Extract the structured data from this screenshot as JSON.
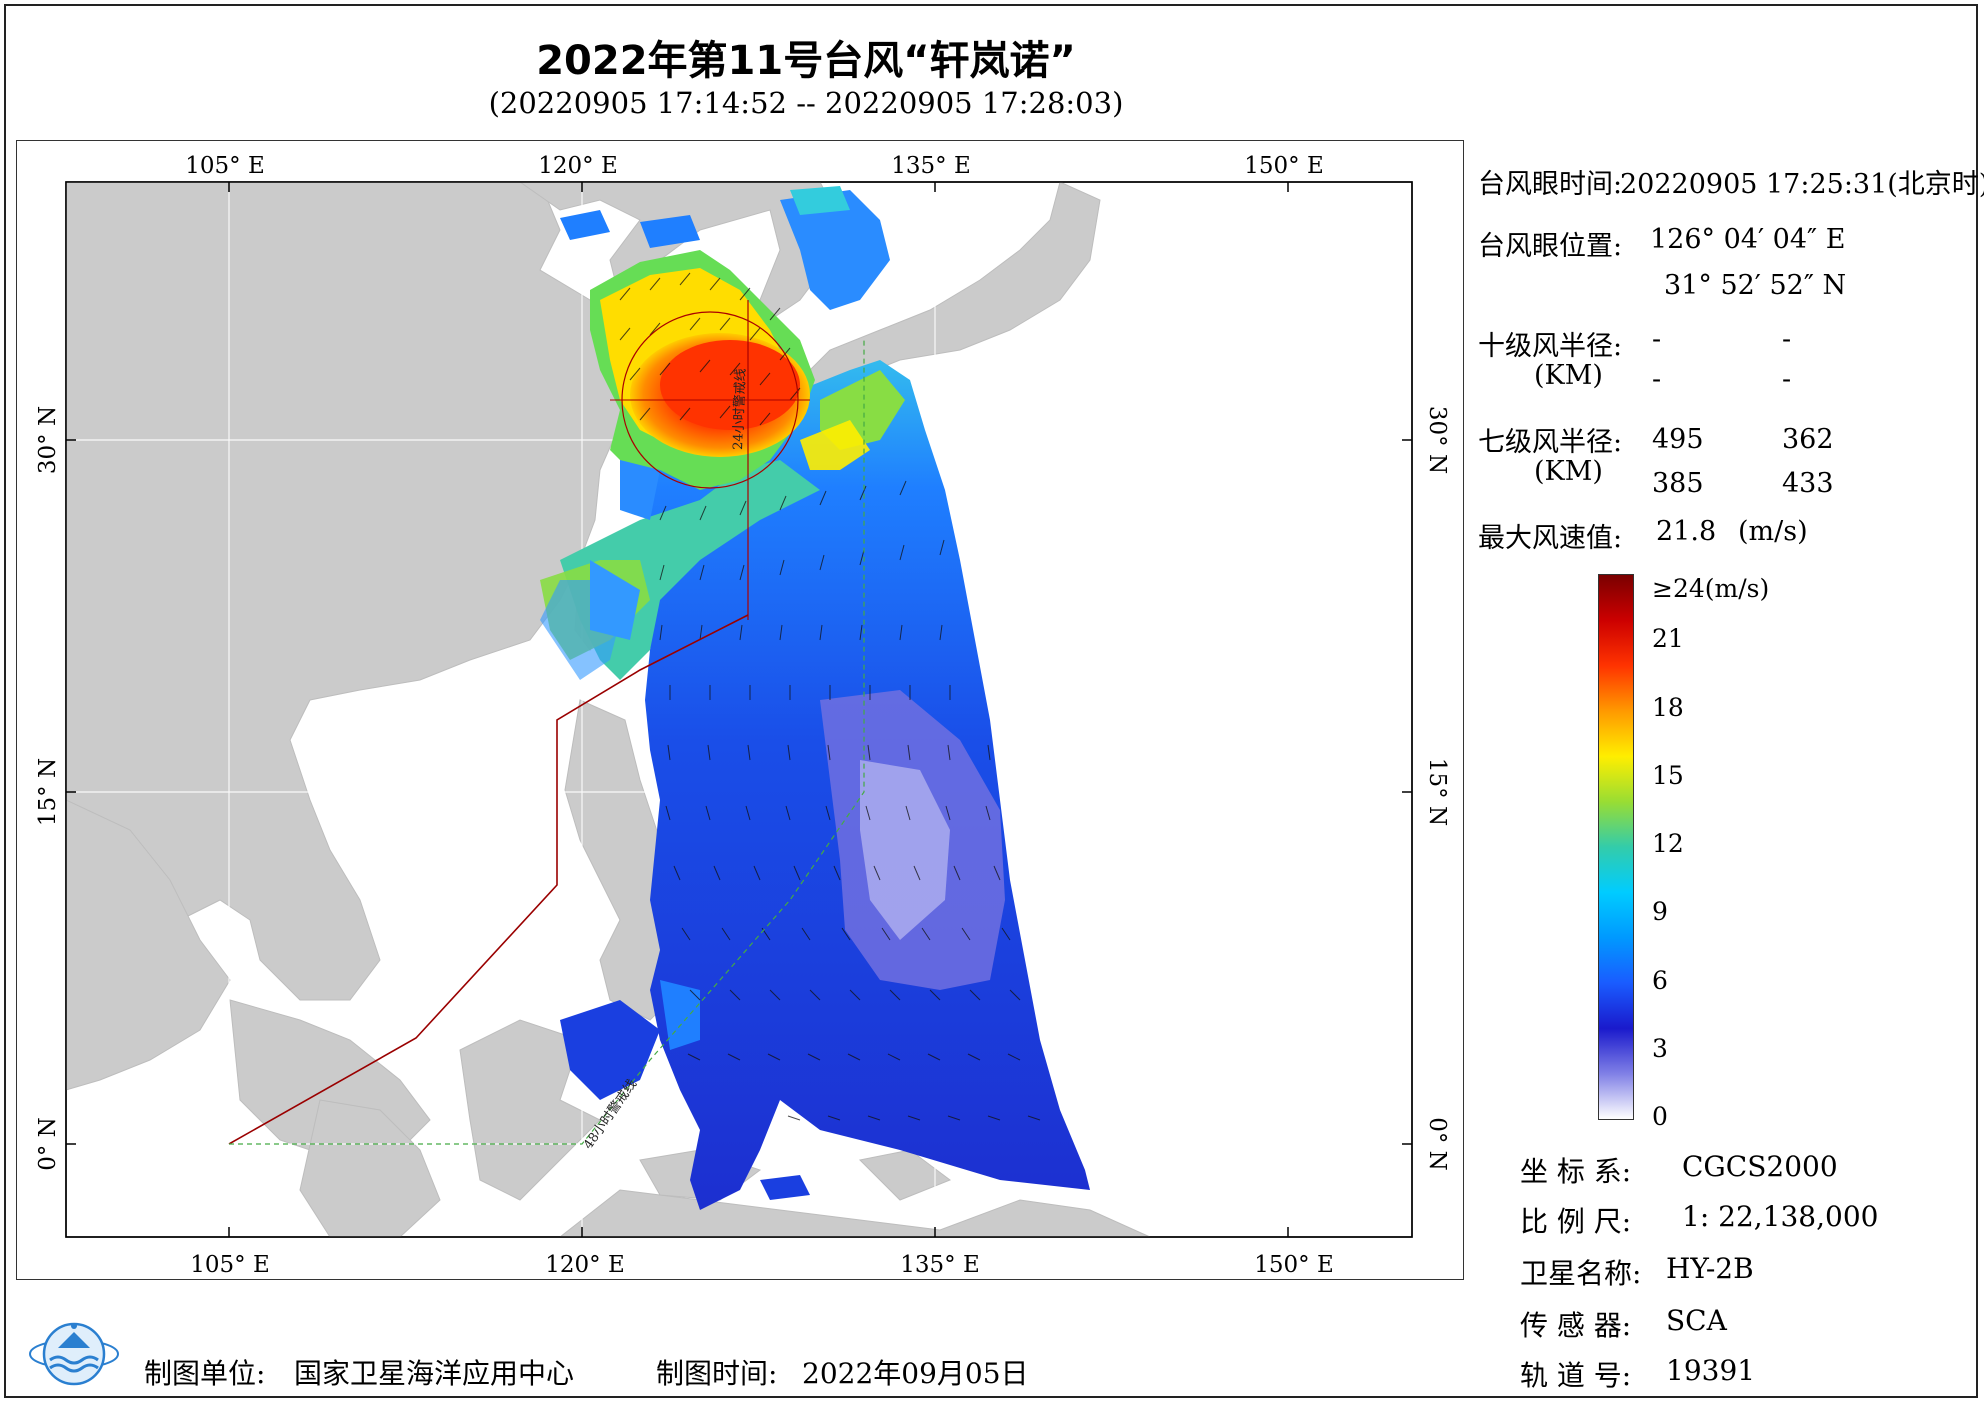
{
  "title": "2022年第11号台风“轩岚诺”",
  "subtitle": "(20220905 17:14:52 -- 20220905 17:28:03)",
  "axes": {
    "top_lon": [
      "105° E",
      "120° E",
      "135° E",
      "150° E"
    ],
    "bottom_lon": [
      "105° E",
      "120° E",
      "135° E",
      "150° E"
    ],
    "lat": [
      "30° N",
      "15° N",
      "0° N"
    ]
  },
  "map_labels": {
    "warning_48h": "48小时警戒线",
    "warning_24h": "24小时警戒线"
  },
  "info": {
    "eye_time_label": "台风眼时间:",
    "eye_time_value": "20220905 17:25:31(北京时)",
    "eye_pos_label": "台风眼位置:",
    "eye_lon": "126° 04′ 04″ E",
    "eye_lat": "31° 52′ 52″ N",
    "r10_label": "十级风半径:",
    "r10_unit": "(KM)",
    "r10_values": [
      "-",
      "-",
      "-",
      "-"
    ],
    "r7_label": "七级风半径:",
    "r7_unit": "(KM)",
    "r7_values": [
      "495",
      "362",
      "385",
      "433"
    ],
    "max_wind_label": "最大风速值:",
    "max_wind_value": "21.8",
    "max_wind_unit": "(m/s)"
  },
  "colorbar": {
    "labels": [
      "≥24(m/s)",
      "21",
      "18",
      "15",
      "12",
      "9",
      "6",
      "3",
      "0"
    ],
    "values": [
      24,
      21,
      18,
      15,
      12,
      9,
      6,
      3,
      0
    ],
    "colors": [
      "#7a0000",
      "#cc0000",
      "#ff3300",
      "#ff9900",
      "#ffee00",
      "#99dd33",
      "#33ccaa",
      "#00ccff",
      "#0099ff",
      "#1a5cff",
      "#1a1acc",
      "#8080e6",
      "#ffffff"
    ]
  },
  "meta": {
    "crs_label": "坐 标 系:",
    "crs_value": "CGCS2000",
    "scale_label": "比 例 尺:",
    "scale_value": "1: 22,138,000",
    "satellite_label": "卫星名称:",
    "satellite_value": "HY-2B",
    "sensor_label": "传 感 器:",
    "sensor_value": "SCA",
    "orbit_label": "轨 道 号:",
    "orbit_value": "19391"
  },
  "footer": {
    "unit_label": "制图单位:",
    "unit_value": "国家卫星海洋应用中心",
    "date_label": "制图时间:",
    "date_value": "2022年09月05日"
  }
}
